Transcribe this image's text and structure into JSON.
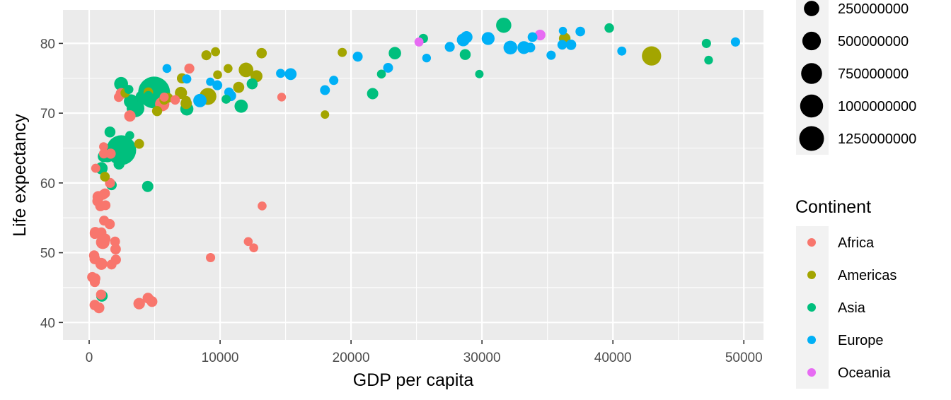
{
  "chart_data": {
    "type": "scatter",
    "title": "",
    "xlabel": "GDP per capita",
    "ylabel": "Life expectancy",
    "xlim": [
      -2000,
      51500
    ],
    "ylim": [
      37.5,
      84.8
    ],
    "x_ticks": [
      0,
      10000,
      20000,
      30000,
      40000,
      50000
    ],
    "y_ticks": [
      40,
      50,
      60,
      70,
      80
    ],
    "grid": true,
    "size_legend": {
      "title": "",
      "values": [
        250000000,
        500000000,
        750000000,
        1000000000,
        1250000000
      ],
      "labels": [
        "250000000",
        "500000000",
        "750000000",
        "1000000000",
        "1250000000"
      ]
    },
    "color_legend": {
      "title": "Continent",
      "entries": [
        {
          "name": "Africa",
          "color": "#F8766D"
        },
        {
          "name": "Americas",
          "color": "#A3A500"
        },
        {
          "name": "Asia",
          "color": "#00BF7D"
        },
        {
          "name": "Europe",
          "color": "#00B0F6"
        },
        {
          "name": "Oceania",
          "color": "#E76BF3"
        }
      ]
    },
    "series": [
      {
        "name": "Africa",
        "color": "#F8766D",
        "points": [
          [
            2260,
            72.3,
            8
          ],
          [
            7650,
            76.4,
            12
          ],
          [
            470,
            46.3,
            13
          ],
          [
            1250,
            56.8,
            10
          ],
          [
            12570,
            50.7,
            3
          ],
          [
            380,
            49.6,
            14
          ],
          [
            1140,
            54.6,
            11
          ],
          [
            1120,
            64.2,
            8
          ],
          [
            430,
            45.8,
            12
          ],
          [
            1230,
            52.0,
            16
          ],
          [
            1980,
            51.6,
            10
          ],
          [
            1640,
            64.2,
            13
          ],
          [
            700,
            58.0,
            33
          ],
          [
            2020,
            50.5,
            17
          ],
          [
            240,
            46.5,
            15
          ],
          [
            430,
            42.5,
            17
          ],
          [
            430,
            49.1,
            18
          ],
          [
            4490,
            43.5,
            19
          ],
          [
            750,
            42.1,
            21
          ],
          [
            930,
            48.4,
            40
          ],
          [
            2450,
            72.8,
            26
          ],
          [
            1040,
            51.5,
            78
          ],
          [
            5580,
            71.3,
            97
          ],
          [
            13210,
            56.7,
            3
          ],
          [
            12150,
            51.6,
            3
          ],
          [
            640,
            57.4,
            16
          ],
          [
            690,
            58.0,
            22
          ],
          [
            1590,
            60.0,
            12
          ],
          [
            1100,
            65.2,
            3
          ],
          [
            9270,
            49.3,
            5
          ],
          [
            1570,
            54.1,
            13
          ],
          [
            5730,
            72.3,
            4
          ],
          [
            3110,
            69.6,
            30
          ],
          [
            4800,
            43.0,
            20
          ],
          [
            3820,
            42.7,
            32
          ],
          [
            1210,
            58.5,
            11
          ],
          [
            2040,
            49.0,
            13
          ],
          [
            14700,
            72.3,
            2
          ],
          [
            6570,
            71.9,
            7
          ],
          [
            910,
            44.0,
            13
          ],
          [
            500,
            62.1,
            4
          ],
          [
            1060,
            58.3,
            10
          ],
          [
            430,
            52.7,
            12
          ],
          [
            860,
            56.7,
            17
          ],
          [
            1710,
            48.3,
            10
          ],
          [
            470,
            52.9,
            26
          ],
          [
            930,
            52.9,
            14
          ]
        ]
      },
      {
        "name": "Americas",
        "color": "#A3A500",
        "points": [
          [
            12780,
            75.3,
            40
          ],
          [
            3820,
            65.6,
            9
          ],
          [
            9070,
            72.4,
            190
          ],
          [
            36320,
            80.7,
            33
          ],
          [
            13170,
            78.6,
            16
          ],
          [
            7010,
            72.9,
            44
          ],
          [
            9650,
            78.8,
            4
          ],
          [
            8950,
            78.3,
            11
          ],
          [
            6030,
            72.2,
            9
          ],
          [
            7090,
            74.99,
            14
          ],
          [
            5730,
            71.9,
            7
          ],
          [
            5190,
            70.3,
            13
          ],
          [
            4520,
            73.0,
            8
          ],
          [
            11980,
            76.2,
            108
          ],
          [
            2750,
            72.9,
            6
          ],
          [
            9810,
            75.5,
            3
          ],
          [
            7410,
            71.8,
            6
          ],
          [
            1200,
            60.9,
            9
          ],
          [
            7410,
            71.4,
            28
          ],
          [
            18010,
            69.8,
            1
          ],
          [
            19330,
            78.7,
            4
          ],
          [
            42950,
            78.2,
            301
          ],
          [
            10610,
            76.4,
            3
          ],
          [
            11420,
            73.7,
            26
          ]
        ]
      },
      {
        "name": "Asia",
        "color": "#00BF7D",
        "points": [
          [
            975,
            43.8,
            31
          ],
          [
            29800,
            75.6,
            1
          ],
          [
            1390,
            64.1,
            150
          ],
          [
            1710,
            59.7,
            15
          ],
          [
            4960,
            72.96,
            1319
          ],
          [
            39720,
            82.2,
            7
          ],
          [
            2450,
            64.7,
            1110
          ],
          [
            3540,
            70.7,
            224
          ],
          [
            11610,
            71.0,
            69
          ],
          [
            4470,
            59.5,
            28
          ],
          [
            25520,
            80.7,
            6
          ],
          [
            31660,
            82.6,
            127
          ],
          [
            4520,
            72.5,
            6
          ],
          [
            1590,
            67.3,
            23
          ],
          [
            23350,
            78.6,
            49
          ],
          [
            47310,
            77.6,
            2
          ],
          [
            10460,
            72.0,
            4
          ],
          [
            12450,
            74.2,
            24
          ],
          [
            3100,
            66.8,
            3
          ],
          [
            940,
            62.1,
            47
          ],
          [
            1090,
            63.8,
            28
          ],
          [
            22320,
            75.6,
            3
          ],
          [
            2610,
            65.5,
            169
          ],
          [
            3190,
            71.7,
            91
          ],
          [
            21650,
            72.8,
            28
          ],
          [
            47140,
            80.0,
            5
          ],
          [
            3970,
            72.4,
            20
          ],
          [
            28720,
            78.4,
            23
          ],
          [
            7460,
            70.6,
            65
          ],
          [
            2440,
            74.2,
            85
          ],
          [
            3030,
            73.4,
            4
          ],
          [
            2280,
            62.7,
            22
          ]
        ]
      },
      {
        "name": "Europe",
        "color": "#00B0F6",
        "points": [
          [
            5940,
            76.4,
            3
          ],
          [
            36130,
            79.8,
            8
          ],
          [
            33690,
            79.4,
            10
          ],
          [
            7450,
            74.9,
            5
          ],
          [
            10680,
            73.0,
            7
          ],
          [
            14620,
            75.7,
            4
          ],
          [
            22830,
            76.5,
            10
          ],
          [
            35280,
            78.3,
            5
          ],
          [
            33210,
            79.3,
            5
          ],
          [
            30470,
            80.7,
            61
          ],
          [
            32170,
            79.4,
            82
          ],
          [
            27540,
            79.5,
            11
          ],
          [
            18010,
            73.3,
            10
          ],
          [
            36180,
            81.8,
            0.3
          ],
          [
            40680,
            78.9,
            4
          ],
          [
            28570,
            80.5,
            58
          ],
          [
            9250,
            74.5,
            1
          ],
          [
            36800,
            79.8,
            16
          ],
          [
            49360,
            80.2,
            5
          ],
          [
            15390,
            75.6,
            38
          ],
          [
            20510,
            78.1,
            11
          ],
          [
            10810,
            72.5,
            22
          ],
          [
            9790,
            74.0,
            10
          ],
          [
            18680,
            74.7,
            5
          ],
          [
            25770,
            77.9,
            2
          ],
          [
            28820,
            80.9,
            40
          ],
          [
            33860,
            80.9,
            9
          ],
          [
            37510,
            81.7,
            8
          ],
          [
            8460,
            71.8,
            71
          ],
          [
            33200,
            79.4,
            60
          ]
        ]
      },
      {
        "name": "Oceania",
        "color": "#E76BF3",
        "points": [
          [
            34440,
            81.2,
            20
          ],
          [
            25190,
            80.2,
            4
          ]
        ]
      }
    ]
  }
}
